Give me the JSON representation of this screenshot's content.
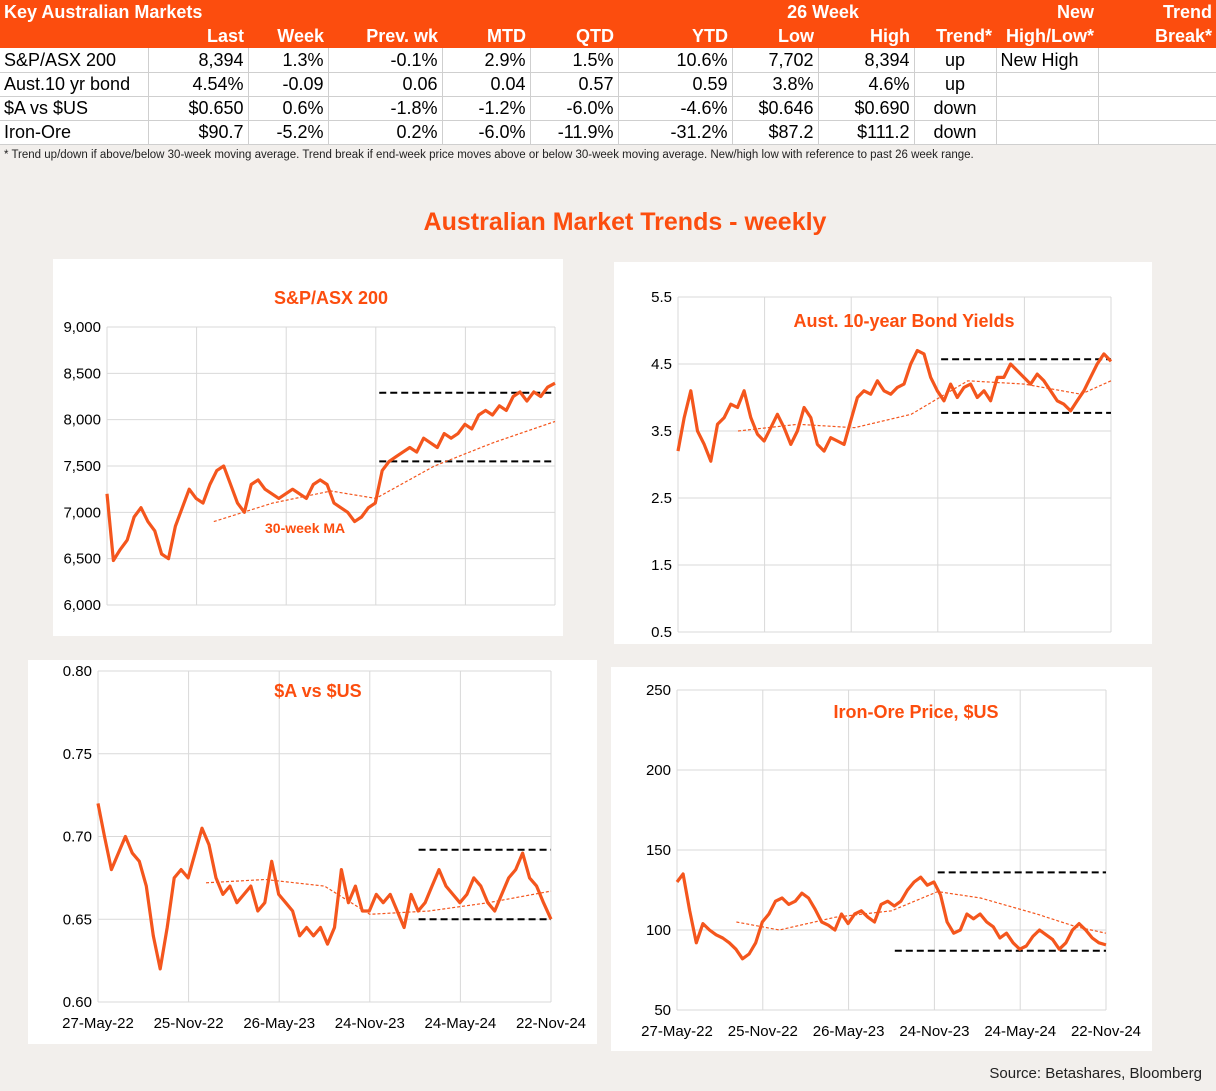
{
  "table": {
    "header_row1": [
      "Key Australian Markets",
      "",
      "",
      "",
      "",
      "",
      "",
      "26 Week",
      "",
      "",
      "New",
      "Trend"
    ],
    "header_row2": [
      "",
      "Last",
      "Week",
      "Prev. wk",
      "MTD",
      "QTD",
      "YTD",
      "Low",
      "High",
      "Trend*",
      "High/Low*",
      "Break*"
    ],
    "rows": [
      [
        "S&P/ASX 200",
        "8,394",
        "1.3%",
        "-0.1%",
        "2.9%",
        "1.5%",
        "10.6%",
        "7,702",
        "8,394",
        "up",
        "New High",
        ""
      ],
      [
        "Aust.10 yr bond",
        "4.54%",
        "-0.09",
        "0.06",
        "0.04",
        "0.57",
        "0.59",
        "3.8%",
        "4.6%",
        "up",
        "",
        ""
      ],
      [
        "$A vs $US",
        "$0.650",
        "0.6%",
        "-1.8%",
        "-1.2%",
        "-6.0%",
        "-4.6%",
        "$0.646",
        "$0.690",
        "down",
        "",
        ""
      ],
      [
        "Iron-Ore",
        "$90.7",
        "-5.2%",
        "0.2%",
        "-6.0%",
        "-11.9%",
        "-31.2%",
        "$87.2",
        "$111.2",
        "down",
        "",
        ""
      ]
    ],
    "footnote": "*  Trend up/down if above/below 30-week moving average. Trend break if end-week price moves above or below 30-week moving average.  New/high low with reference to past 26 week range."
  },
  "main_title": "Australian Market Trends - weekly",
  "source": "Source: Betashares, Bloomberg",
  "colors": {
    "accent": "#fc4d0e",
    "line": "#f4561d",
    "ma": "#f4561d",
    "band": "#000000"
  },
  "chart_data": [
    {
      "type": "line",
      "title": "S&P/ASX 200",
      "annotation": "30-week MA",
      "y_ticks": [
        "9,000",
        "8,500",
        "8,000",
        "7,500",
        "7,000",
        "6,500",
        "6,000"
      ],
      "ylim": [
        6000,
        9000
      ],
      "x_ticks": [],
      "x_range": [
        "27-May-22",
        "22-Nov-24"
      ],
      "series": [
        {
          "role": "price",
          "x": [
            "27-May-22",
            "09-Jun-22",
            "23-Jun-22",
            "07-Jul-22",
            "21-Jul-22",
            "04-Aug-22",
            "18-Aug-22",
            "01-Sep-22",
            "15-Sep-22",
            "29-Sep-22",
            "13-Oct-22",
            "27-Oct-22",
            "10-Nov-22",
            "24-Nov-22",
            "08-Dec-22",
            "22-Dec-22",
            "05-Jan-23",
            "19-Jan-23",
            "02-Feb-23",
            "16-Feb-23",
            "02-Mar-23",
            "16-Mar-23",
            "30-Mar-23",
            "13-Apr-23",
            "27-Apr-23",
            "11-May-23",
            "25-May-23",
            "08-Jun-23",
            "22-Jun-23",
            "06-Jul-23",
            "20-Jul-23",
            "03-Aug-23",
            "17-Aug-23",
            "31-Aug-23",
            "14-Sep-23",
            "28-Sep-23",
            "12-Oct-23",
            "26-Oct-23",
            "09-Nov-23",
            "23-Nov-23",
            "07-Dec-23",
            "21-Dec-23",
            "04-Jan-24",
            "18-Jan-24",
            "01-Feb-24",
            "15-Feb-24",
            "29-Feb-24",
            "14-Mar-24",
            "28-Mar-24",
            "11-Apr-24",
            "25-Apr-24",
            "09-May-24",
            "23-May-24",
            "06-Jun-24",
            "20-Jun-24",
            "04-Jul-24",
            "18-Jul-24",
            "01-Aug-24",
            "15-Aug-24",
            "29-Aug-24",
            "12-Sep-24",
            "26-Sep-24",
            "10-Oct-24",
            "24-Oct-24",
            "07-Nov-24",
            "22-Nov-24"
          ],
          "y": [
            7200,
            6480,
            6600,
            6700,
            6950,
            7050,
            6900,
            6800,
            6550,
            6500,
            6850,
            7050,
            7250,
            7150,
            7100,
            7300,
            7450,
            7500,
            7300,
            7100,
            7000,
            7300,
            7350,
            7250,
            7200,
            7150,
            7200,
            7250,
            7200,
            7150,
            7300,
            7350,
            7300,
            7100,
            7050,
            7000,
            6900,
            6950,
            7050,
            7100,
            7450,
            7550,
            7600,
            7650,
            7700,
            7650,
            7800,
            7750,
            7700,
            7850,
            7800,
            7850,
            7950,
            7900,
            8050,
            8100,
            8050,
            8150,
            8100,
            8250,
            8300,
            8200,
            8300,
            8250,
            8350,
            8394
          ]
        },
        {
          "role": "ma",
          "x": [
            "30-Dec-22",
            "28-Apr-23",
            "25-Aug-23",
            "24-Nov-23",
            "22-Mar-24",
            "19-Jul-24",
            "22-Nov-24"
          ],
          "y": [
            6900,
            7100,
            7230,
            7150,
            7500,
            7750,
            7980
          ]
        }
      ],
      "bands": [
        {
          "level": 8290,
          "x": [
            "01-Dec-23",
            "22-Nov-24"
          ]
        },
        {
          "level": 7550,
          "x": [
            "01-Dec-23",
            "22-Nov-24"
          ]
        }
      ]
    },
    {
      "type": "line",
      "title": "Aust. 10-year Bond Yields",
      "y_ticks": [
        "5.5",
        "4.5",
        "3.5",
        "2.5",
        "1.5",
        "0.5"
      ],
      "ylim": [
        0.5,
        5.5
      ],
      "x_ticks": [],
      "x_range": [
        "27-May-22",
        "22-Nov-24"
      ],
      "series": [
        {
          "role": "price",
          "x": [
            "27-May-22",
            "09-Jun-22",
            "23-Jun-22",
            "07-Jul-22",
            "21-Jul-22",
            "04-Aug-22",
            "18-Aug-22",
            "01-Sep-22",
            "15-Sep-22",
            "29-Sep-22",
            "13-Oct-22",
            "27-Oct-22",
            "10-Nov-22",
            "24-Nov-22",
            "08-Dec-22",
            "22-Dec-22",
            "05-Jan-23",
            "19-Jan-23",
            "02-Feb-23",
            "16-Feb-23",
            "02-Mar-23",
            "16-Mar-23",
            "30-Mar-23",
            "13-Apr-23",
            "27-Apr-23",
            "11-May-23",
            "25-May-23",
            "08-Jun-23",
            "22-Jun-23",
            "06-Jul-23",
            "20-Jul-23",
            "03-Aug-23",
            "17-Aug-23",
            "31-Aug-23",
            "14-Sep-23",
            "28-Sep-23",
            "12-Oct-23",
            "26-Oct-23",
            "09-Nov-23",
            "23-Nov-23",
            "07-Dec-23",
            "21-Dec-23",
            "04-Jan-24",
            "18-Jan-24",
            "01-Feb-24",
            "15-Feb-24",
            "29-Feb-24",
            "14-Mar-24",
            "28-Mar-24",
            "11-Apr-24",
            "25-Apr-24",
            "09-May-24",
            "23-May-24",
            "06-Jun-24",
            "20-Jun-24",
            "04-Jul-24",
            "18-Jul-24",
            "01-Aug-24",
            "15-Aug-24",
            "29-Aug-24",
            "12-Sep-24",
            "26-Sep-24",
            "10-Oct-24",
            "24-Oct-24",
            "07-Nov-24",
            "22-Nov-24"
          ],
          "y": [
            3.2,
            3.7,
            4.1,
            3.5,
            3.3,
            3.05,
            3.6,
            3.7,
            3.9,
            3.85,
            4.1,
            3.7,
            3.45,
            3.35,
            3.55,
            3.75,
            3.55,
            3.3,
            3.5,
            3.85,
            3.7,
            3.3,
            3.2,
            3.4,
            3.35,
            3.3,
            3.65,
            4.0,
            4.1,
            4.05,
            4.25,
            4.1,
            4.05,
            4.15,
            4.2,
            4.5,
            4.7,
            4.65,
            4.3,
            4.1,
            3.95,
            4.2,
            4.0,
            4.15,
            4.2,
            4.0,
            4.1,
            3.95,
            4.3,
            4.3,
            4.5,
            4.4,
            4.3,
            4.2,
            4.35,
            4.25,
            4.1,
            3.95,
            3.9,
            3.8,
            3.95,
            4.1,
            4.3,
            4.5,
            4.65,
            4.54
          ]
        },
        {
          "role": "ma",
          "x": [
            "30-Sep-22",
            "03-Feb-23",
            "02-Jun-23",
            "29-Sep-23",
            "26-Jan-24",
            "24-May-24",
            "20-Sep-24",
            "22-Nov-24"
          ],
          "y": [
            3.5,
            3.6,
            3.55,
            3.75,
            4.25,
            4.2,
            4.05,
            4.25
          ]
        }
      ],
      "bands": [
        {
          "level": 4.57,
          "x": [
            "01-Dec-23",
            "22-Nov-24"
          ]
        },
        {
          "level": 3.77,
          "x": [
            "01-Dec-23",
            "22-Nov-24"
          ]
        }
      ]
    },
    {
      "type": "line",
      "title": "$A vs $US",
      "y_ticks": [
        "0.80",
        "0.75",
        "0.70",
        "0.65",
        "0.60"
      ],
      "ylim": [
        0.6,
        0.8
      ],
      "x_ticks": [
        "27-May-22",
        "25-Nov-22",
        "26-May-23",
        "24-Nov-23",
        "24-May-24",
        "22-Nov-24"
      ],
      "x_range": [
        "27-May-22",
        "22-Nov-24"
      ],
      "series": [
        {
          "role": "price",
          "x": [
            "27-May-22",
            "09-Jun-22",
            "23-Jun-22",
            "07-Jul-22",
            "21-Jul-22",
            "04-Aug-22",
            "18-Aug-22",
            "01-Sep-22",
            "15-Sep-22",
            "29-Sep-22",
            "13-Oct-22",
            "27-Oct-22",
            "10-Nov-22",
            "24-Nov-22",
            "08-Dec-22",
            "22-Dec-22",
            "05-Jan-23",
            "19-Jan-23",
            "02-Feb-23",
            "16-Feb-23",
            "02-Mar-23",
            "16-Mar-23",
            "30-Mar-23",
            "13-Apr-23",
            "27-Apr-23",
            "11-May-23",
            "25-May-23",
            "08-Jun-23",
            "22-Jun-23",
            "06-Jul-23",
            "20-Jul-23",
            "03-Aug-23",
            "17-Aug-23",
            "31-Aug-23",
            "14-Sep-23",
            "28-Sep-23",
            "12-Oct-23",
            "26-Oct-23",
            "09-Nov-23",
            "23-Nov-23",
            "07-Dec-23",
            "21-Dec-23",
            "04-Jan-24",
            "18-Jan-24",
            "01-Feb-24",
            "15-Feb-24",
            "29-Feb-24",
            "14-Mar-24",
            "28-Mar-24",
            "11-Apr-24",
            "25-Apr-24",
            "09-May-24",
            "23-May-24",
            "06-Jun-24",
            "20-Jun-24",
            "04-Jul-24",
            "18-Jul-24",
            "01-Aug-24",
            "15-Aug-24",
            "29-Aug-24",
            "12-Sep-24",
            "26-Sep-24",
            "10-Oct-24",
            "24-Oct-24",
            "07-Nov-24",
            "22-Nov-24"
          ],
          "y": [
            0.72,
            0.7,
            0.68,
            0.69,
            0.7,
            0.69,
            0.685,
            0.67,
            0.64,
            0.62,
            0.645,
            0.675,
            0.68,
            0.675,
            0.69,
            0.705,
            0.695,
            0.675,
            0.665,
            0.67,
            0.66,
            0.665,
            0.67,
            0.655,
            0.66,
            0.685,
            0.665,
            0.66,
            0.655,
            0.64,
            0.645,
            0.64,
            0.645,
            0.635,
            0.645,
            0.68,
            0.66,
            0.67,
            0.655,
            0.655,
            0.665,
            0.66,
            0.665,
            0.655,
            0.645,
            0.665,
            0.655,
            0.66,
            0.67,
            0.68,
            0.67,
            0.665,
            0.66,
            0.665,
            0.675,
            0.67,
            0.66,
            0.655,
            0.665,
            0.675,
            0.68,
            0.69,
            0.675,
            0.67,
            0.66,
            0.65
          ]
        },
        {
          "role": "ma",
          "x": [
            "30-Dec-22",
            "28-Apr-23",
            "25-Aug-23",
            "24-Nov-23",
            "22-Mar-24",
            "19-Jul-24",
            "22-Nov-24"
          ],
          "y": [
            0.672,
            0.674,
            0.67,
            0.653,
            0.655,
            0.66,
            0.667
          ]
        }
      ],
      "bands": [
        {
          "level": 0.692,
          "x": [
            "01-Mar-24",
            "22-Nov-24"
          ]
        },
        {
          "level": 0.65,
          "x": [
            "01-Mar-24",
            "22-Nov-24"
          ]
        }
      ]
    },
    {
      "type": "line",
      "title": "Iron-Ore Price, $US",
      "y_ticks": [
        "250",
        "200",
        "150",
        "100",
        "50"
      ],
      "ylim": [
        50,
        250
      ],
      "x_ticks": [
        "27-May-22",
        "25-Nov-22",
        "26-May-23",
        "24-Nov-23",
        "24-May-24",
        "22-Nov-24"
      ],
      "x_range": [
        "27-May-22",
        "22-Nov-24"
      ],
      "series": [
        {
          "role": "price",
          "x": [
            "27-May-22",
            "09-Jun-22",
            "23-Jun-22",
            "07-Jul-22",
            "21-Jul-22",
            "04-Aug-22",
            "18-Aug-22",
            "01-Sep-22",
            "15-Sep-22",
            "29-Sep-22",
            "13-Oct-22",
            "27-Oct-22",
            "10-Nov-22",
            "24-Nov-22",
            "08-Dec-22",
            "22-Dec-22",
            "05-Jan-23",
            "19-Jan-23",
            "02-Feb-23",
            "16-Feb-23",
            "02-Mar-23",
            "16-Mar-23",
            "30-Mar-23",
            "13-Apr-23",
            "27-Apr-23",
            "11-May-23",
            "25-May-23",
            "08-Jun-23",
            "22-Jun-23",
            "06-Jul-23",
            "20-Jul-23",
            "03-Aug-23",
            "17-Aug-23",
            "31-Aug-23",
            "14-Sep-23",
            "28-Sep-23",
            "12-Oct-23",
            "26-Oct-23",
            "09-Nov-23",
            "23-Nov-23",
            "07-Dec-23",
            "21-Dec-23",
            "04-Jan-24",
            "18-Jan-24",
            "01-Feb-24",
            "15-Feb-24",
            "29-Feb-24",
            "14-Mar-24",
            "28-Mar-24",
            "11-Apr-24",
            "25-Apr-24",
            "09-May-24",
            "23-May-24",
            "06-Jun-24",
            "20-Jun-24",
            "04-Jul-24",
            "18-Jul-24",
            "01-Aug-24",
            "15-Aug-24",
            "29-Aug-24",
            "12-Sep-24",
            "26-Sep-24",
            "10-Oct-24",
            "24-Oct-24",
            "07-Nov-24",
            "22-Nov-24"
          ],
          "y": [
            130,
            135,
            112,
            92,
            104,
            100,
            97,
            95,
            92,
            88,
            82,
            85,
            92,
            105,
            110,
            118,
            120,
            116,
            118,
            123,
            120,
            113,
            105,
            103,
            100,
            110,
            104,
            110,
            112,
            108,
            105,
            116,
            118,
            115,
            118,
            125,
            130,
            133,
            128,
            130,
            122,
            105,
            98,
            100,
            110,
            107,
            110,
            105,
            102,
            95,
            98,
            92,
            88,
            90,
            96,
            100,
            97,
            94,
            88,
            92,
            100,
            104,
            100,
            95,
            92,
            90.7
          ]
        },
        {
          "role": "ma",
          "x": [
            "30-Sep-22",
            "30-Dec-22",
            "28-Apr-23",
            "25-Aug-23",
            "01-Dec-23",
            "01-Mar-24",
            "28-Jun-24",
            "20-Sep-24",
            "22-Nov-24"
          ],
          "y": [
            105,
            100,
            108,
            112,
            124,
            120,
            110,
            102,
            98
          ]
        }
      ],
      "bands": [
        {
          "level": 136,
          "x": [
            "01-Dec-23",
            "22-Nov-24"
          ]
        },
        {
          "level": 87,
          "x": [
            "01-Sep-23",
            "22-Nov-24"
          ]
        }
      ]
    }
  ]
}
